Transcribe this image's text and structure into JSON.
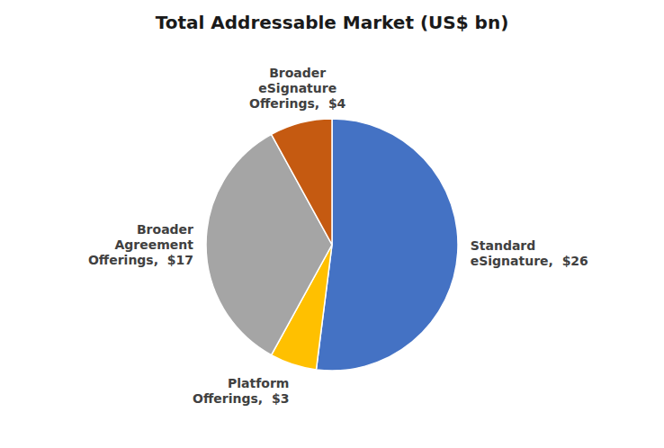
{
  "chart_data": {
    "type": "pie",
    "title": "Total Addressable Market (US$ bn)",
    "categories": [
      "Standard\neSignature,  $26",
      "Platform\nOfferings,  $3",
      "Broader\nAgreement\nOfferings,  $17",
      "Broader\neSignature\nOfferings,  $4"
    ],
    "values": [
      26,
      3,
      17,
      4
    ],
    "colors": [
      "#4472C4",
      "#FFC000",
      "#A5A5A5",
      "#C55A11"
    ]
  }
}
